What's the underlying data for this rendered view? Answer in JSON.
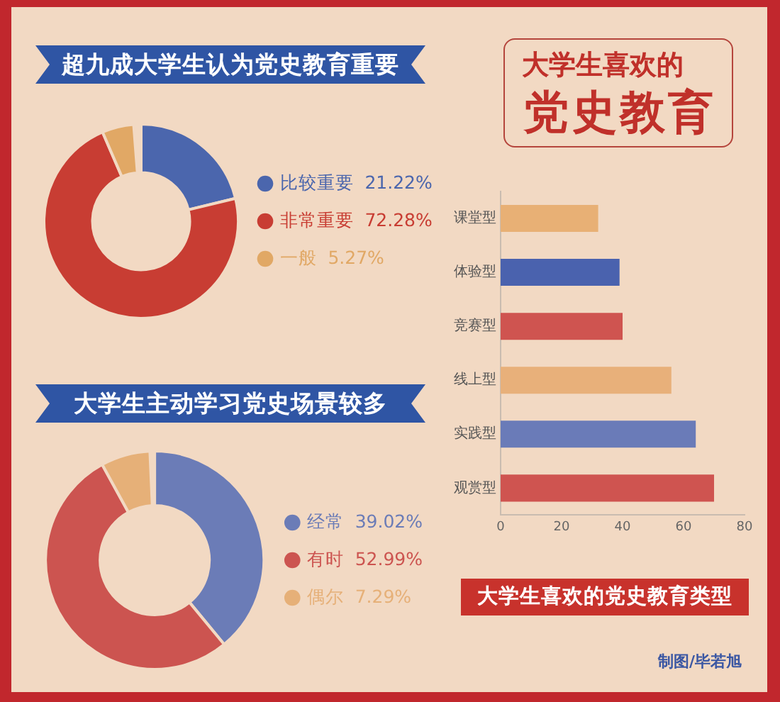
{
  "chart_data": [
    {
      "type": "donut",
      "title": "超九成大学生认为党史教育重要",
      "categories": [
        "比较重要",
        "非常重要",
        "一般"
      ],
      "values": [
        21.22,
        72.28,
        5.27
      ],
      "colors": [
        "#4b66ad",
        "#c83d33",
        "#e1a865"
      ],
      "value_labels": [
        "21.22%",
        "72.28%",
        "5.27%"
      ],
      "legend": "right"
    },
    {
      "type": "other",
      "title": "大学生喜欢的",
      "subtitle": "党史教育"
    },
    {
      "type": "donut",
      "title": "大学生主动学习党史场景较多",
      "categories": [
        "经常",
        "有时",
        "偶尔"
      ],
      "values": [
        39.02,
        52.99,
        7.29
      ],
      "colors": [
        "#6b7cb7",
        "#cc5450",
        "#e6b078"
      ],
      "value_labels": [
        "39.02%",
        "52.99%",
        "7.29%"
      ],
      "legend": "right"
    },
    {
      "type": "bar",
      "title": "大学生喜欢的党史教育类型",
      "orientation": "horizontal",
      "categories": [
        "课堂型",
        "体验型",
        "竞赛型",
        "线上型",
        "实践型",
        "观赏型"
      ],
      "values": [
        32,
        39,
        40,
        56,
        64,
        70
      ],
      "colors": [
        "#e8b075",
        "#4a62ae",
        "#cf5450",
        "#e8b07a",
        "#6a7bb8",
        "#cf5450"
      ],
      "xlim": [
        0,
        80
      ],
      "xticks": [
        0,
        20,
        40,
        60,
        80
      ],
      "grid": false,
      "legend": false,
      "annotations": [
        "制图/毕若旭"
      ]
    }
  ]
}
